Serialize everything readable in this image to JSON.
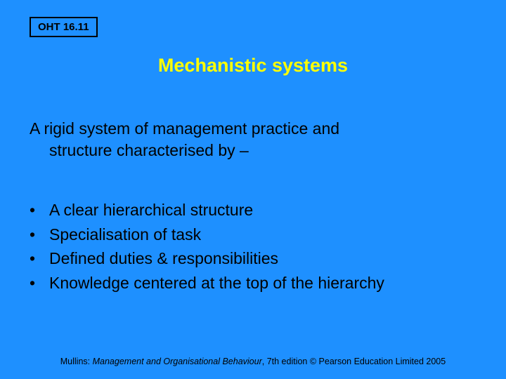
{
  "colors": {
    "background": "#1e90ff",
    "title": "#ffff00",
    "text": "#000000",
    "box_border": "#000000"
  },
  "typography": {
    "family": "Arial",
    "title_fontsize": 27,
    "title_weight": "bold",
    "body_fontsize": 23,
    "oht_fontsize": 15,
    "footer_fontsize": 12.5
  },
  "oht_label": "OHT 16.11",
  "title": "Mechanistic systems",
  "intro_line1": "A rigid system of management practice and",
  "intro_line2": "structure characterised by –",
  "bullets": [
    "A clear hierarchical structure",
    "Specialisation of task",
    "Defined duties & responsibilities",
    "Knowledge centered at the top of the hierarchy"
  ],
  "footer_prefix": "Mullins: ",
  "footer_italic": "Management and Organisational Behaviour",
  "footer_suffix": ", 7th edition © Pearson Education Limited 2005"
}
